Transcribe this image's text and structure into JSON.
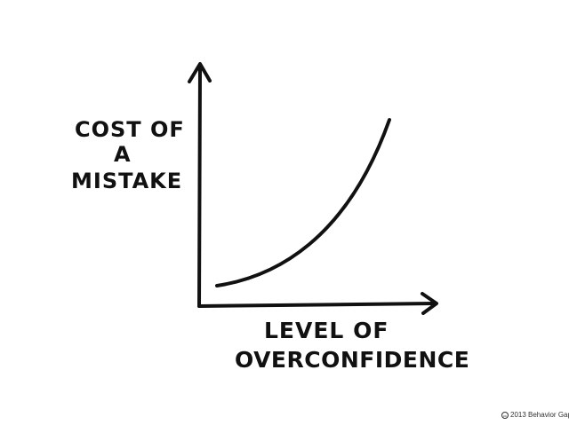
{
  "diagram": {
    "y_axis_label_lines": [
      "Cost of",
      "a",
      "Mistake"
    ],
    "x_axis_label_lines": [
      "Level of",
      "Overconfidence"
    ],
    "curve": "increasing, convex"
  },
  "footer": {
    "copyright_icon": "cc-icon",
    "copyright_text": "2013 Behavior Gap"
  },
  "colors": {
    "ink": "#111111",
    "background": "#ffffff"
  }
}
